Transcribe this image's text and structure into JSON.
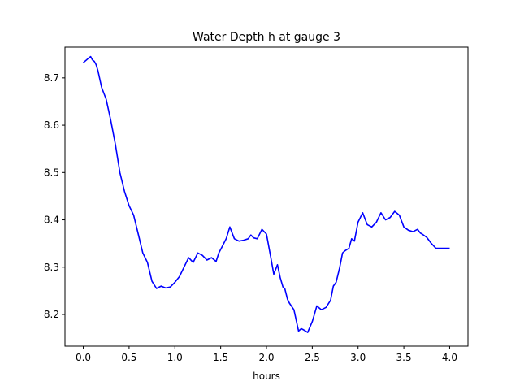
{
  "chart_data": {
    "type": "line",
    "title": "Water Depth h at gauge 3",
    "xlabel": "hours",
    "ylabel": "",
    "xlim": [
      -0.2,
      4.2
    ],
    "ylim": [
      8.133,
      8.765
    ],
    "xticks": [
      0.0,
      0.5,
      1.0,
      1.5,
      2.0,
      2.5,
      3.0,
      3.5,
      4.0
    ],
    "xtick_labels": [
      "0.0",
      "0.5",
      "1.0",
      "1.5",
      "2.0",
      "2.5",
      "3.0",
      "3.5",
      "4.0"
    ],
    "yticks": [
      8.2,
      8.3,
      8.4,
      8.5,
      8.6,
      8.7
    ],
    "ytick_labels": [
      "8.2",
      "8.3",
      "8.4",
      "8.5",
      "8.6",
      "8.7"
    ],
    "grid": false,
    "series": [
      {
        "color": "#0000ff",
        "x": [
          0.0,
          0.03,
          0.06,
          0.08,
          0.1,
          0.12,
          0.14,
          0.16,
          0.2,
          0.25,
          0.3,
          0.35,
          0.4,
          0.45,
          0.5,
          0.55,
          0.6,
          0.65,
          0.7,
          0.75,
          0.8,
          0.85,
          0.9,
          0.95,
          1.0,
          1.05,
          1.1,
          1.15,
          1.2,
          1.25,
          1.3,
          1.35,
          1.4,
          1.45,
          1.48,
          1.52,
          1.56,
          1.6,
          1.65,
          1.7,
          1.75,
          1.8,
          1.83,
          1.86,
          1.9,
          1.95,
          2.0,
          2.05,
          2.08,
          2.12,
          2.15,
          2.18,
          2.2,
          2.23,
          2.25,
          2.3,
          2.35,
          2.38,
          2.4,
          2.45,
          2.5,
          2.55,
          2.6,
          2.65,
          2.7,
          2.73,
          2.76,
          2.8,
          2.83,
          2.86,
          2.9,
          2.93,
          2.96,
          3.0,
          3.05,
          3.1,
          3.15,
          3.2,
          3.25,
          3.3,
          3.35,
          3.4,
          3.45,
          3.5,
          3.55,
          3.6,
          3.65,
          3.68,
          3.7,
          3.75,
          3.8,
          3.85,
          3.9,
          3.93,
          3.96,
          4.0
        ],
        "y": [
          8.732,
          8.737,
          8.742,
          8.745,
          8.738,
          8.735,
          8.728,
          8.715,
          8.68,
          8.655,
          8.61,
          8.56,
          8.5,
          8.46,
          8.43,
          8.41,
          8.37,
          8.33,
          8.31,
          8.27,
          8.255,
          8.26,
          8.256,
          8.258,
          8.268,
          8.28,
          8.3,
          8.32,
          8.31,
          8.33,
          8.325,
          8.315,
          8.32,
          8.312,
          8.33,
          8.345,
          8.36,
          8.385,
          8.36,
          8.355,
          8.357,
          8.36,
          8.368,
          8.362,
          8.36,
          8.38,
          8.37,
          8.318,
          8.285,
          8.305,
          8.278,
          8.258,
          8.255,
          8.232,
          8.224,
          8.21,
          8.165,
          8.17,
          8.168,
          8.162,
          8.185,
          8.218,
          8.21,
          8.215,
          8.23,
          8.26,
          8.268,
          8.3,
          8.33,
          8.335,
          8.34,
          8.36,
          8.355,
          8.395,
          8.415,
          8.39,
          8.385,
          8.395,
          8.415,
          8.4,
          8.405,
          8.418,
          8.41,
          8.385,
          8.378,
          8.375,
          8.38,
          8.372,
          8.37,
          8.363,
          8.35,
          8.34,
          8.34,
          8.34,
          8.34,
          8.34
        ]
      }
    ]
  }
}
